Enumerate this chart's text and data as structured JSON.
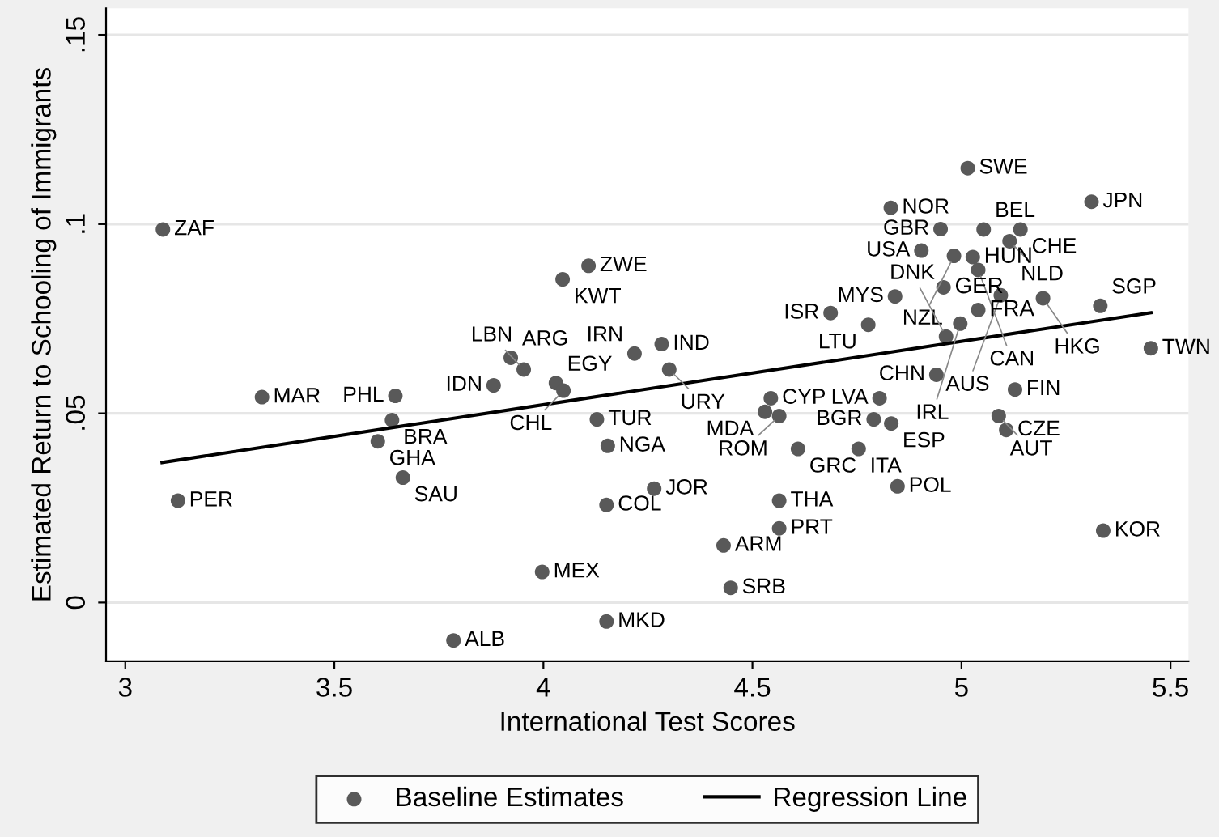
{
  "chart_data": {
    "type": "scatter",
    "xlabel": "International Test Scores",
    "ylabel": "Estimated Return to Schooling of Immigrants",
    "xlim": [
      2.954,
      5.543
    ],
    "ylim": [
      -0.0155,
      0.157
    ],
    "xticks": [
      3,
      3.5,
      4,
      4.5,
      5,
      5.5
    ],
    "yticks": [
      {
        "value": 0,
        "label": "0"
      },
      {
        "value": 0.05,
        "label": ".05"
      },
      {
        "value": 0.1,
        "label": ".1"
      },
      {
        "value": 0.15,
        "label": ".15"
      }
    ],
    "grid": "y",
    "legend": "bottom",
    "marker": "circle",
    "series": [
      {
        "name": "Baseline Estimates",
        "color": "#595959",
        "x": [
          3.09,
          4.108,
          4.046,
          3.922,
          3.953,
          3.881,
          4.03,
          4.048,
          4.218,
          3.327,
          3.646,
          3.638,
          3.604,
          3.664,
          3.126,
          4.128,
          4.154,
          4.151,
          3.997,
          4.151,
          3.785,
          5.015,
          4.831,
          5.311,
          4.95,
          5.053,
          5.141,
          5.115,
          4.904,
          4.982,
          5.027,
          5.04,
          4.957,
          4.841,
          5.094,
          5.195,
          5.332,
          5.04,
          4.687,
          4.777,
          4.997,
          4.963,
          5.453,
          4.283,
          4.301,
          4.94,
          5.128,
          4.544,
          4.53,
          4.564,
          4.804,
          4.79,
          4.832,
          5.089,
          5.107,
          4.609,
          4.754,
          4.265,
          4.564,
          4.847,
          4.564,
          4.431,
          4.448,
          5.339
        ],
        "values": [
          0.0986,
          0.089,
          0.0854,
          0.0647,
          0.0616,
          0.0574,
          0.058,
          0.056,
          0.0658,
          0.0543,
          0.0546,
          0.0482,
          0.0426,
          0.033,
          0.0269,
          0.0484,
          0.0414,
          0.0258,
          0.0081,
          -0.005,
          -0.01,
          0.1148,
          0.1043,
          0.1059,
          0.0987,
          0.0986,
          0.0986,
          0.0955,
          0.093,
          0.0916,
          0.0913,
          0.0879,
          0.0833,
          0.0809,
          0.0812,
          0.0804,
          0.0784,
          0.0773,
          0.0765,
          0.0734,
          0.0737,
          0.0703,
          0.0672,
          0.0683,
          0.0616,
          0.0602,
          0.0563,
          0.054,
          0.0504,
          0.0493,
          0.054,
          0.0484,
          0.0473,
          0.0493,
          0.0456,
          0.0406,
          0.0406,
          0.0301,
          0.0269,
          0.0307,
          0.0196,
          0.0151,
          0.0039,
          0.019
        ],
        "value_labels": [
          "ZAF",
          "ZWE",
          "KWT",
          "ARG",
          "LBN",
          "IDN",
          "EGY",
          "CHL",
          "IRN",
          "MAR",
          "PHL",
          "BRA",
          "GHA",
          "SAU",
          "PER",
          "TUR",
          "NGA",
          "COL",
          "MEX",
          "MKD",
          "ALB",
          "SWE",
          "NOR",
          "JPN",
          "GBR",
          "BEL",
          "CHE",
          "NLD",
          "USA",
          "NZL",
          "HUN",
          "CAN",
          "GER",
          "MYS",
          "AUS",
          "HKG",
          "SGP",
          "FRA",
          "ISR",
          "LTU",
          "IRL",
          "DNK",
          "TWN",
          "IND",
          "URY",
          "CHN",
          "FIN",
          "CYP",
          "MDA",
          "ROM",
          "LVA",
          "BGR",
          "ESP",
          "AUT",
          "CZE",
          "GRC",
          "ITA",
          "JOR",
          "THA",
          "POL",
          "PRT",
          "ARM",
          "SRB",
          "KOR"
        ]
      },
      {
        "name": "Regression Line",
        "type": "line",
        "color": "#000000",
        "marker": "none",
        "line_style": "solid",
        "x": [
          3.088,
          5.453
        ],
        "values": [
          0.037,
          0.0766
        ]
      }
    ]
  }
}
